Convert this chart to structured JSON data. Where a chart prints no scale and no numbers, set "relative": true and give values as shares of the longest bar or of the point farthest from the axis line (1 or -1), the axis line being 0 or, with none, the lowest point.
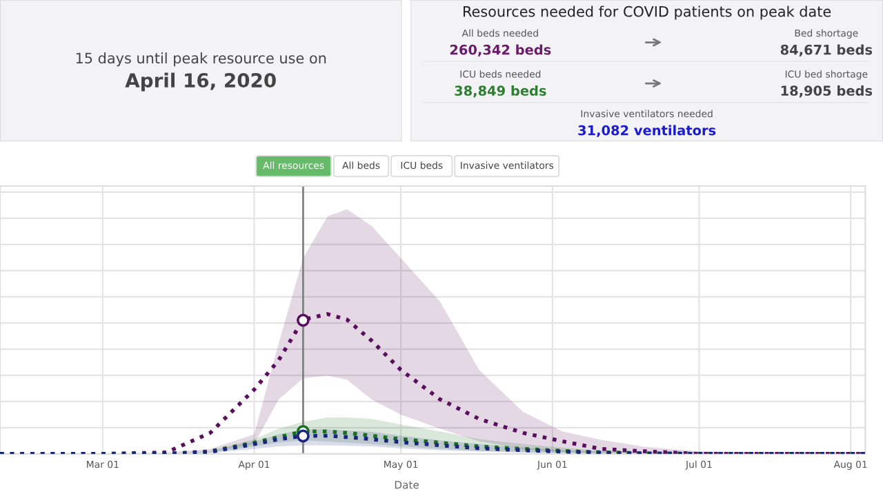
{
  "chart_data": [
    {
      "type": "other",
      "annotations": [
        "15 days until peak resource use on",
        "April 16, 2020"
      ]
    },
    {
      "type": "other",
      "title": "Resources needed for COVID patients on peak date",
      "annotations": [
        "All beds needed",
        "260,342 beds",
        "Bed shortage",
        "84,671 beds",
        "ICU beds needed",
        "38,849 beds",
        "ICU bed shortage",
        "18,905 beds",
        "Invasive ventilators needed",
        "31,082 ventilators"
      ]
    },
    {
      "type": "line",
      "relative": true,
      "xlabel": "Date",
      "tick_labels": "x",
      "grid": true,
      "legend": false,
      "line_style": "dotted",
      "marker": "none",
      "annotations": [
        "All resources",
        "All beds",
        "ICU beds",
        "Invasive ventilators"
      ],
      "xlim": [
        "2020-02-09",
        "2020-08-04"
      ],
      "xticks": [
        {
          "value": "2020-03-01",
          "label": "Mar 01"
        },
        {
          "value": "2020-04-01",
          "label": "Apr 01"
        },
        {
          "value": "2020-05-01",
          "label": "May 01"
        },
        {
          "value": "2020-06-01",
          "label": "Jun 01"
        },
        {
          "value": "2020-07-01",
          "label": "Jul 01"
        },
        {
          "value": "2020-08-01",
          "label": "Aug 01"
        }
      ],
      "x": [
        "2020-02-09",
        "2020-03-01",
        "2020-03-14",
        "2020-03-23",
        "2020-04-01",
        "2020-04-06",
        "2020-04-11",
        "2020-04-16",
        "2020-04-20",
        "2020-04-25",
        "2020-05-01",
        "2020-05-09",
        "2020-05-17",
        "2020-05-26",
        "2020-06-03",
        "2020-06-11",
        "2020-06-20",
        "2020-07-01",
        "2020-08-04"
      ],
      "ref_lines": [
        {
          "axis": "x",
          "value": "2020-04-11",
          "color": "#808080",
          "line_style": "solid"
        }
      ],
      "series": [
        {
          "color": "#5a0f5e",
          "values": [
            0,
            0,
            0.01,
            0.15,
            0.46,
            0.67,
            0.96,
            1.0,
            0.96,
            0.81,
            0.6,
            0.39,
            0.25,
            0.15,
            0.09,
            0.035,
            0.018,
            0,
            0
          ],
          "lower": [
            0,
            0,
            0,
            0.018,
            0.07,
            0.39,
            0.54,
            0.56,
            0.53,
            0.39,
            0.28,
            0.18,
            0.09,
            0.035,
            0.014,
            0.005,
            0,
            0,
            0
          ],
          "upper": [
            0,
            0,
            0.01,
            0.035,
            0.14,
            0.79,
            1.4,
            1.7,
            1.75,
            1.63,
            1.4,
            1.09,
            0.6,
            0.3,
            0.16,
            0.1,
            0.05,
            0.018,
            0
          ]
        },
        {
          "color": "#1b6e20",
          "values": [
            0,
            0,
            0,
            0.018,
            0.08,
            0.12,
            0.16,
            0.16,
            0.15,
            0.13,
            0.105,
            0.08,
            0.053,
            0.035,
            0.021,
            0.011,
            0.004,
            0,
            0
          ],
          "lower": [
            0,
            0,
            0,
            0.009,
            0.053,
            0.08,
            0.096,
            0.088,
            0.08,
            0.07,
            0.053,
            0.035,
            0.021,
            0.012,
            0.007,
            0.004,
            0,
            0,
            0
          ],
          "upper": [
            0,
            0,
            0,
            0.021,
            0.105,
            0.18,
            0.23,
            0.26,
            0.26,
            0.25,
            0.21,
            0.16,
            0.105,
            0.07,
            0.044,
            0.021,
            0.009,
            0,
            0
          ]
        },
        {
          "color": "#1a237e",
          "values": [
            0,
            0,
            0,
            0.014,
            0.07,
            0.105,
            0.128,
            0.13,
            0.12,
            0.105,
            0.084,
            0.061,
            0.04,
            0.026,
            0.016,
            0.007,
            0.002,
            0,
            0
          ],
          "lower": [
            0,
            0,
            0,
            0.007,
            0.035,
            0.053,
            0.061,
            0.061,
            0.058,
            0.053,
            0.039,
            0.026,
            0.016,
            0.009,
            0.005,
            0.002,
            0,
            0,
            0
          ],
          "upper": [
            0,
            0,
            0,
            0.018,
            0.088,
            0.14,
            0.175,
            0.175,
            0.167,
            0.158,
            0.13,
            0.096,
            0.07,
            0.044,
            0.026,
            0.012,
            0.004,
            0,
            0
          ]
        },
        {
          "type": "scatter",
          "marker": "circle",
          "x": [
            "2020-04-11",
            "2020-04-11",
            "2020-04-11"
          ],
          "values": [
            0.956,
            0.16,
            0.128
          ],
          "colors": [
            "#5a0f5e",
            "#1b6e20",
            "#1a237e"
          ]
        }
      ]
    }
  ]
}
